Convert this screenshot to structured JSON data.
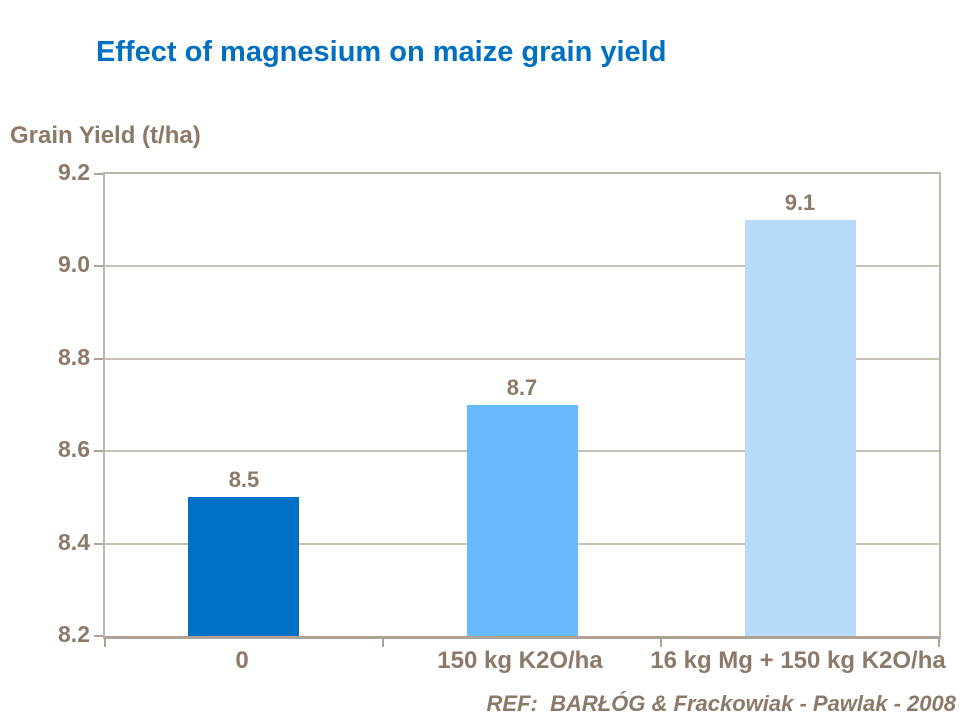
{
  "title": "Effect of magnesium on maize grain yield",
  "reference": "REF:  BARŁÓG & Frackowiak - Pawlak - 2008",
  "colors": {
    "title_text": "#0070C0",
    "axis_text": "#8B7A69",
    "axis_line": "#ACA295",
    "plot_border": "#BFB5A8",
    "gridline": "#C9C0B4",
    "bars": [
      "#0071C5",
      "#67B9FB",
      "#B8DBFA"
    ],
    "background": "#FFFFFF"
  },
  "chart_data": {
    "type": "bar",
    "title": "Effect of magnesium on maize grain yield",
    "xlabel": "",
    "ylabel": "Grain Yield (t/ha)",
    "categories": [
      "0",
      "150 kg K2O/ha",
      "16 kg Mg + 150 kg K2O/ha"
    ],
    "values": [
      8.5,
      8.7,
      9.1
    ],
    "data_labels": [
      "8.5",
      "8.7",
      "9.1"
    ],
    "ylim": [
      8.2,
      9.2
    ],
    "yticks": [
      9.2,
      9.0,
      8.8,
      8.6,
      8.4,
      8.2
    ],
    "ytick_labels": [
      "9.2",
      "9.0",
      "8.8",
      "8.6",
      "8.4",
      "8.2"
    ],
    "grid": true,
    "legend_position": "none",
    "annotation": "REF:  BARŁÓG & Frackowiak - Pawlak - 2008"
  }
}
